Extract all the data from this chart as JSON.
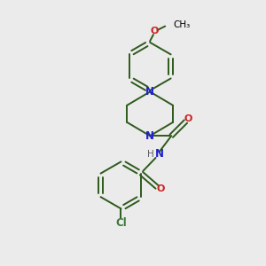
{
  "background_color": "#ebebeb",
  "bond_color": "#2d5a1b",
  "n_color": "#2020cc",
  "o_color": "#cc2020",
  "cl_color": "#3a7a3a",
  "h_color": "#606060",
  "text_color": "#000000",
  "lw": 1.4,
  "fig_size": [
    3.0,
    3.0
  ],
  "dpi": 100,
  "xlim": [
    0,
    10
  ],
  "ylim": [
    0,
    10
  ]
}
